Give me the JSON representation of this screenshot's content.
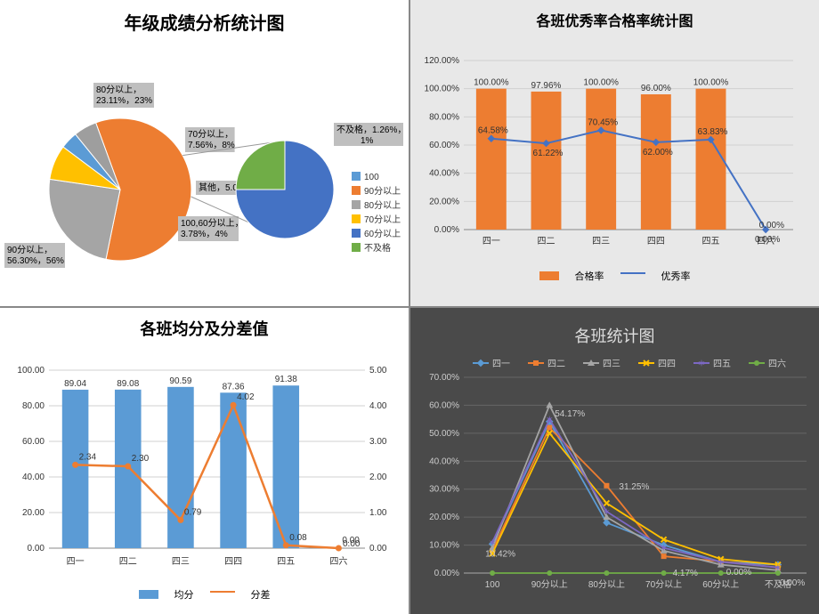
{
  "pie": {
    "title": "年级成绩分析统计图",
    "title_fontsize": 20,
    "main_slices": [
      {
        "key": "90分以上",
        "value": 56.3,
        "pct": "56%",
        "color": "#ed7d31",
        "label": "90分以上，56.30%，56%"
      },
      {
        "key": "80分以上",
        "value": 23.11,
        "pct": "23%",
        "color": "#a5a5a5",
        "label": "80分以上，23.11%，23%"
      },
      {
        "key": "70分以上",
        "value": 7.56,
        "pct": "8%",
        "color": "#ffc000",
        "label": "70分以上，7.56%，8%"
      },
      {
        "key": "100",
        "value": 3.78,
        "pct": "",
        "color": "#5b9bd5",
        "label": "100,60分以上，3.78%，4%"
      },
      {
        "key": "其他",
        "value": 5.04,
        "pct": "5%",
        "color": "#9e9e9e",
        "label": "其他，5.04%，5%"
      }
    ],
    "sub_slices": [
      {
        "key": "60分以上",
        "color": "#4472c4",
        "value": 75
      },
      {
        "key": "不及格",
        "color": "#70ad47",
        "value": 25,
        "label": "不及格，1.26%，1%"
      }
    ],
    "legend": [
      {
        "label": "100",
        "color": "#5b9bd5"
      },
      {
        "label": "90分以上",
        "color": "#ed7d31"
      },
      {
        "label": "80分以上",
        "color": "#a5a5a5"
      },
      {
        "label": "70分以上",
        "color": "#ffc000"
      },
      {
        "label": "60分以上",
        "color": "#4472c4"
      },
      {
        "label": "不及格",
        "color": "#70ad47"
      }
    ],
    "background_color": "#ffffff"
  },
  "pass_rate": {
    "title": "各班优秀率合格率统计图",
    "title_fontsize": 16,
    "categories": [
      "四一",
      "四二",
      "四三",
      "四四",
      "四五",
      "四六"
    ],
    "pass": [
      100.0,
      97.96,
      100.0,
      96.0,
      100.0,
      0.0
    ],
    "excellent": [
      64.58,
      61.22,
      70.45,
      62.0,
      63.83,
      0.0
    ],
    "pass_labels": [
      "100.00%",
      "97.96%",
      "100.00%",
      "96.00%",
      "100.00%",
      ""
    ],
    "excellent_labels": [
      "64.58%",
      "61.22%",
      "70.45%",
      "62.00%",
      "63.83%",
      "0.00%"
    ],
    "extra_zero_label": "0.00%",
    "ylim": [
      0,
      120
    ],
    "ytick_step": 20,
    "bar_color": "#ed7d31",
    "line_color": "#4472c4",
    "legend": {
      "bar": "合格率",
      "line": "优秀率"
    },
    "background_color": "#e8e8e8"
  },
  "avg_var": {
    "title": "各班均分及分差值",
    "title_fontsize": 18,
    "categories": [
      "四一",
      "四二",
      "四三",
      "四四",
      "四五",
      "四六"
    ],
    "avg": [
      89.04,
      89.08,
      90.59,
      87.36,
      91.38,
      0.0
    ],
    "var": [
      2.34,
      2.3,
      0.79,
      4.02,
      0.08,
      0.0
    ],
    "avg_labels": [
      "89.04",
      "89.08",
      "90.59",
      "87.36",
      "91.38",
      ""
    ],
    "var_labels": [
      "2.34",
      "2.30",
      "0.79",
      "4.02",
      "0.08",
      "0.00"
    ],
    "var_extra_label": "0.00",
    "y1lim": [
      0,
      100
    ],
    "y1tick_step": 20,
    "y2lim": [
      0,
      5
    ],
    "y2tick_step": 1,
    "bar_color": "#5b9bd5",
    "line_color": "#ed7d31",
    "legend": {
      "bar": "均分",
      "line": "分差"
    },
    "background_color": "#ffffff"
  },
  "class_stats": {
    "title": "各班统计图",
    "title_fontsize": 18,
    "categories": [
      "100",
      "90分以上",
      "80分以上",
      "70分以上",
      "60分以上",
      "不及格"
    ],
    "series": [
      {
        "name": "四一",
        "color": "#5b9bd5",
        "marker": "diamond",
        "values": [
          10.42,
          54.17,
          18,
          10,
          4,
          3
        ]
      },
      {
        "name": "四二",
        "color": "#ed7d31",
        "marker": "square",
        "values": [
          8,
          52,
          31.25,
          6,
          4.17,
          2
        ]
      },
      {
        "name": "四三",
        "color": "#a5a5a5",
        "marker": "triangle",
        "values": [
          9,
          60,
          20,
          8,
          3,
          1
        ]
      },
      {
        "name": "四四",
        "color": "#ffc000",
        "marker": "x",
        "values": [
          7,
          50,
          25,
          12,
          5,
          3
        ]
      },
      {
        "name": "四五",
        "color": "#7c68c4",
        "marker": "star",
        "values": [
          11,
          55,
          22,
          9,
          4,
          2
        ]
      },
      {
        "name": "四六",
        "color": "#70ad47",
        "marker": "circle",
        "values": [
          0,
          0,
          0,
          0,
          0,
          0
        ]
      }
    ],
    "labels_on_chart": [
      "10.42%",
      "54.17%",
      "31.25%",
      "4.17%",
      "0.00%",
      "0.00%"
    ],
    "ylim": [
      0,
      70
    ],
    "ytick_step": 10,
    "background_color": "#4a4a4a"
  }
}
